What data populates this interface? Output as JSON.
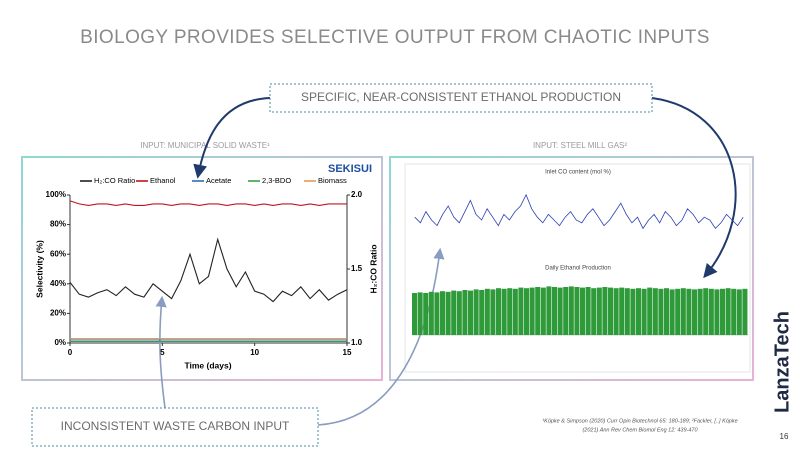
{
  "slide": {
    "title": "BIOLOGY PROVIDES SELECTIVE OUTPUT FROM CHAOTIC INPUTS",
    "callout_top": "SPECIFIC, NEAR-CONSISTENT ETHANOL PRODUCTION",
    "callout_bottom": "INCONSISTENT WASTE CARBON INPUT",
    "label_left": "INPUT: MUNICIPAL SOLID WASTE¹",
    "label_right": "INPUT: STEEL MILL GAS²",
    "logo_left": "SEKISUI",
    "footnote": [
      "¹Köpke & Simpson (2020) Curr Opin Biotechnol 65: 180-189; ²Fackler, [..] Köpke",
      "(2021) Ann Rev Chem Biomol Eng 12: 439-470"
    ],
    "page_number": "16",
    "brand": "LanzaTech"
  },
  "chart_data": [
    {
      "type": "line",
      "x_label": "Time (days)",
      "y_label": "Selectivity (%)",
      "y2_label": "H₂:CO Ratio",
      "x": [
        0,
        0.5,
        1,
        1.5,
        2,
        2.5,
        3,
        3.5,
        4,
        4.5,
        5,
        5.5,
        6,
        6.5,
        7,
        7.5,
        8,
        8.5,
        9,
        9.5,
        10,
        10.5,
        11,
        11.5,
        12,
        12.5,
        13,
        13.5,
        14,
        14.5,
        15
      ],
      "xlim": [
        0,
        15
      ],
      "xticks": [
        0,
        5,
        10,
        15
      ],
      "ylim": [
        0,
        100
      ],
      "yticks": [
        {
          "value": 0,
          "label": "0%"
        },
        {
          "value": 20,
          "label": "20%"
        },
        {
          "value": 40,
          "label": "40%"
        },
        {
          "value": 60,
          "label": "60%"
        },
        {
          "value": 80,
          "label": "80%"
        },
        {
          "value": 100,
          "label": "100%"
        }
      ],
      "y2lim": [
        1,
        2
      ],
      "y2ticks": [
        {
          "value": 1,
          "label": "1.0"
        },
        1.5,
        {
          "value": 2,
          "label": "2.0"
        }
      ],
      "series": [
        {
          "name": "H₂:CO Ratio",
          "color": "#222222",
          "axis": "y2",
          "values": [
            1.41,
            1.33,
            1.31,
            1.34,
            1.36,
            1.32,
            1.38,
            1.33,
            1.31,
            1.4,
            1.35,
            1.3,
            1.42,
            1.6,
            1.4,
            1.45,
            1.7,
            1.5,
            1.38,
            1.48,
            1.35,
            1.33,
            1.28,
            1.35,
            1.32,
            1.38,
            1.3,
            1.36,
            1.29,
            1.33,
            1.36
          ]
        },
        {
          "name": "Ethanol",
          "color": "#c0161d",
          "values": [
            96,
            94,
            93,
            94,
            94,
            93,
            94,
            93,
            93,
            94,
            94,
            93,
            94,
            94,
            93,
            94,
            94,
            93,
            94,
            94,
            93,
            94,
            93,
            94,
            94,
            93,
            94,
            93,
            94,
            94,
            94
          ]
        },
        {
          "name": "Acetate",
          "color": "#2e6db4",
          "values": [
            2,
            2,
            2,
            2,
            2,
            2,
            2,
            2,
            2,
            2,
            2,
            2,
            2,
            2,
            2,
            2,
            2,
            2,
            2,
            2,
            2,
            2,
            2,
            2,
            2,
            2,
            2,
            2,
            2,
            2,
            2
          ]
        },
        {
          "name": "2,3-BDO",
          "color": "#3aa047",
          "values": [
            1,
            1,
            1,
            1,
            1,
            1,
            1,
            1,
            1,
            1,
            1,
            1,
            1,
            1,
            1,
            1,
            1,
            1,
            1,
            1,
            1,
            1,
            1,
            1,
            1,
            1,
            1,
            1,
            1,
            1,
            1
          ]
        },
        {
          "name": "Biomass",
          "color": "#e69a5a",
          "values": [
            3,
            3,
            3,
            3,
            3,
            3,
            3,
            3,
            3,
            3,
            3,
            3,
            3,
            3,
            3,
            3,
            3,
            3,
            3,
            3,
            3,
            3,
            3,
            3,
            3,
            3,
            3,
            3,
            3,
            3,
            3
          ]
        }
      ]
    },
    {
      "type": "line",
      "title": "Inlet CO content (mol %)",
      "ylim": [
        30,
        60
      ],
      "series": [
        {
          "color": "#2a3fb0",
          "values": [
            46,
            44,
            48,
            45,
            43,
            47,
            50,
            46,
            44,
            48,
            52,
            47,
            45,
            49,
            46,
            43,
            47,
            45,
            48,
            50,
            54,
            49,
            46,
            44,
            47,
            45,
            43,
            46,
            48,
            45,
            44,
            47,
            49,
            46,
            43,
            45,
            48,
            51,
            47,
            44,
            46,
            42,
            45,
            47,
            44,
            48,
            46,
            43,
            45,
            49,
            47,
            44,
            46,
            45,
            42,
            44,
            47,
            45,
            43,
            46
          ]
        }
      ]
    },
    {
      "type": "bar",
      "title": "Daily Ethanol Production",
      "ylim": [
        0,
        100
      ],
      "color": "#2e9a3a",
      "values": [
        70,
        71,
        70,
        72,
        71,
        73,
        72,
        74,
        73,
        75,
        74,
        76,
        75,
        77,
        76,
        78,
        77,
        78,
        77,
        79,
        78,
        79,
        80,
        79,
        81,
        80,
        79,
        80,
        81,
        80,
        79,
        80,
        78,
        79,
        80,
        79,
        78,
        79,
        78,
        77,
        78,
        77,
        79,
        78,
        77,
        78,
        76,
        77,
        78,
        77,
        76,
        77,
        78,
        77,
        76,
        77,
        78,
        77,
        76,
        77
      ]
    }
  ]
}
